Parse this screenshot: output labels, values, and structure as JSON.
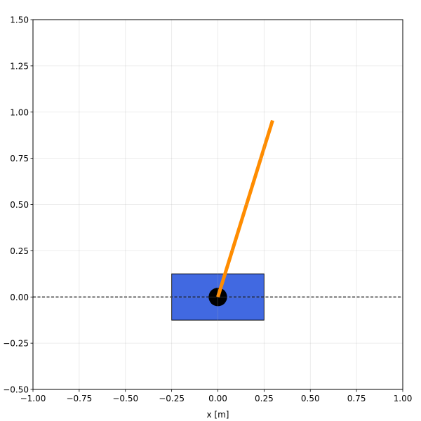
{
  "chart_data": {
    "type": "diagram-plot",
    "xlabel": "x [m]",
    "ylabel": "",
    "xlim": [
      -1.0,
      1.0
    ],
    "ylim": [
      -0.5,
      1.5
    ],
    "xticks": [
      "−1.00",
      "−0.75",
      "−0.50",
      "−0.25",
      "0.00",
      "0.25",
      "0.50",
      "0.75",
      "1.00"
    ],
    "xtick_values": [
      -1.0,
      -0.75,
      -0.5,
      -0.25,
      0.0,
      0.25,
      0.5,
      0.75,
      1.0
    ],
    "yticks": [
      "−0.50",
      "−0.25",
      "0.00",
      "0.25",
      "0.50",
      "0.75",
      "1.00",
      "1.25",
      "1.50"
    ],
    "ytick_values": [
      -0.5,
      -0.25,
      0.0,
      0.25,
      0.5,
      0.75,
      1.0,
      1.25,
      1.5
    ],
    "grid": true,
    "track": {
      "y": 0.0,
      "style": "dashed",
      "color": "#000000"
    },
    "cart": {
      "x_min": -0.25,
      "x_max": 0.25,
      "y_min": -0.125,
      "y_max": 0.125,
      "color": "#4169e1",
      "edge": "#000000"
    },
    "pivot": {
      "x": 0.0,
      "y": 0.0,
      "radius": 0.05,
      "color": "#000000"
    },
    "pole": {
      "x0": 0.0,
      "y0": 0.0,
      "x1": 0.296,
      "y1": 0.955,
      "color": "#ff8c00"
    }
  }
}
